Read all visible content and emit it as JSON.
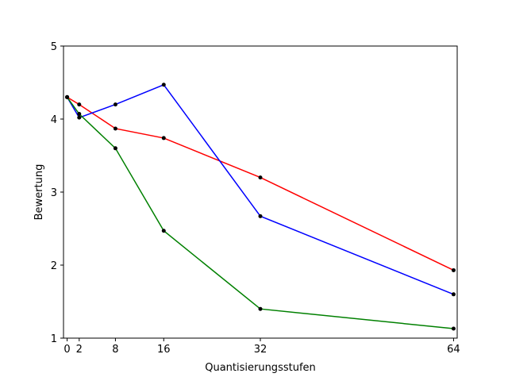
{
  "chart_data": {
    "type": "line",
    "title": "",
    "xlabel": "Quantisierungsstufen",
    "ylabel": "Bewertung",
    "xlim": [
      -0.6,
      64.6
    ],
    "ylim": [
      1,
      5
    ],
    "x_ticks": [
      0,
      2,
      8,
      16,
      32,
      64
    ],
    "y_ticks": [
      1,
      2,
      3,
      4,
      5
    ],
    "grid": false,
    "x": [
      0,
      2,
      8,
      16,
      32,
      64
    ],
    "series": [
      {
        "color": "#ff0000",
        "marker_color": "#000000",
        "values": [
          4.3,
          4.2,
          3.87,
          3.74,
          3.2,
          1.93
        ]
      },
      {
        "color": "#0000ff",
        "marker_color": "#000000",
        "values": [
          4.3,
          4.02,
          4.2,
          4.47,
          2.67,
          1.6
        ]
      },
      {
        "color": "#008000",
        "marker_color": "#000000",
        "values": [
          4.3,
          4.07,
          3.6,
          2.47,
          1.4,
          1.13
        ]
      }
    ]
  }
}
